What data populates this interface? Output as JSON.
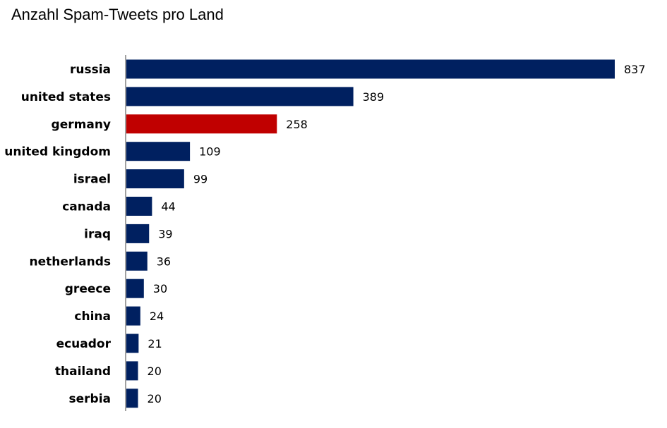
{
  "chart_data": {
    "type": "bar",
    "orientation": "horizontal",
    "title": "Anzahl Spam-Tweets pro Land",
    "xlabel": "",
    "ylabel": "",
    "categories": [
      "russia",
      "united states",
      "germany",
      "united kingdom",
      "israel",
      "canada",
      "iraq",
      "netherlands",
      "greece",
      "china",
      "ecuador",
      "thailand",
      "serbia"
    ],
    "values": [
      837,
      389,
      258,
      109,
      99,
      44,
      39,
      36,
      30,
      24,
      21,
      20,
      20
    ],
    "xlim": [
      0,
      837
    ],
    "grid": false,
    "legend": "none",
    "colors": {
      "default": "#002060",
      "highlight": "#C00000",
      "axis": "#808080"
    },
    "highlight_category": "germany"
  }
}
